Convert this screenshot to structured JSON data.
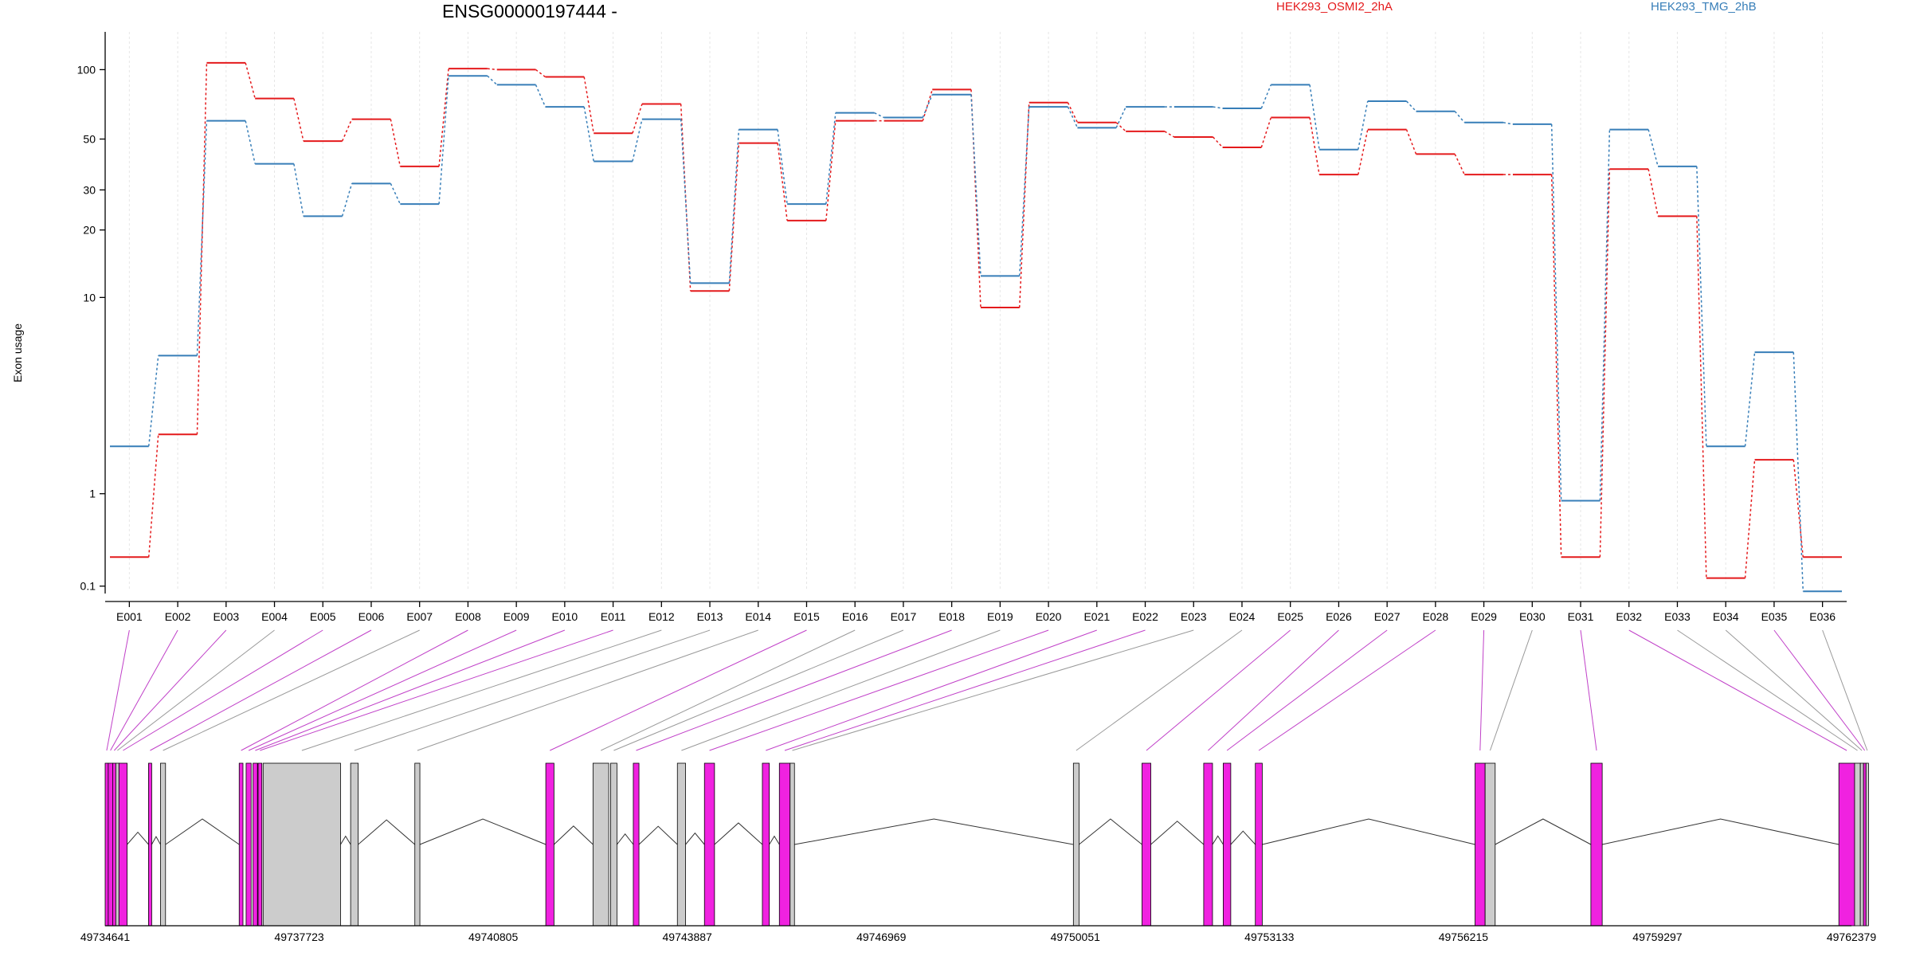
{
  "chart_data": {
    "type": "line",
    "title": "ENSG00000197444 -",
    "ylabel": "Exon usage",
    "y_scale": "log-like",
    "y_ticks": [
      0.1,
      1,
      10,
      20,
      30,
      50,
      100
    ],
    "ylim": [
      0.08,
      140
    ],
    "grid": "vertical dotted at each exon",
    "legend_position": "top",
    "categories": [
      "E001",
      "E002",
      "E003",
      "E004",
      "E005",
      "E006",
      "E007",
      "E008",
      "E009",
      "E010",
      "E011",
      "E012",
      "E013",
      "E014",
      "E015",
      "E016",
      "E017",
      "E018",
      "E019",
      "E020",
      "E021",
      "E022",
      "E023",
      "E024",
      "E025",
      "E026",
      "E027",
      "E028",
      "E029",
      "E030",
      "E031",
      "E032",
      "E033",
      "E034",
      "E035",
      "E036"
    ],
    "series": [
      {
        "name": "HEK293_OSMI2_2hA",
        "color": "#e41a1c",
        "values": [
          0.3,
          2.2,
          107,
          75,
          49,
          61,
          38,
          101,
          100,
          93,
          53,
          71,
          10.7,
          48,
          22,
          60,
          60,
          82,
          9,
          72,
          59,
          54,
          51,
          46,
          62,
          35,
          55,
          43,
          35,
          35,
          0.3,
          37,
          23,
          0.15,
          1.6,
          0.3
        ]
      },
      {
        "name": "HEK293_TMG_2hB",
        "color": "#377eb8",
        "values": [
          1.9,
          5.4,
          60,
          39,
          23,
          32,
          26,
          94,
          86,
          69,
          40,
          61,
          11.6,
          55,
          26,
          65,
          62,
          78,
          12.5,
          69,
          56,
          69,
          69,
          68,
          86,
          45,
          73,
          66,
          59,
          58,
          0.9,
          55,
          38,
          1.9,
          5.6,
          0.07
        ]
      }
    ],
    "gene_model": {
      "coordinate_labels": [
        "49734641",
        "49737723",
        "49740805",
        "49743887",
        "49746969",
        "49750051",
        "49753133",
        "49756215",
        "49759297",
        "49762379"
      ],
      "exon_highlight_color": "#f022e0",
      "exon_default_color": "#cccccc",
      "highlighted_exons": [
        "E001",
        "E002",
        "E003",
        "E005",
        "E006",
        "E008",
        "E009",
        "E010",
        "E011",
        "E015",
        "E018",
        "E020",
        "E021",
        "E022",
        "E025",
        "E026",
        "E027",
        "E028",
        "E029",
        "E031",
        "E032",
        "E035"
      ]
    }
  }
}
